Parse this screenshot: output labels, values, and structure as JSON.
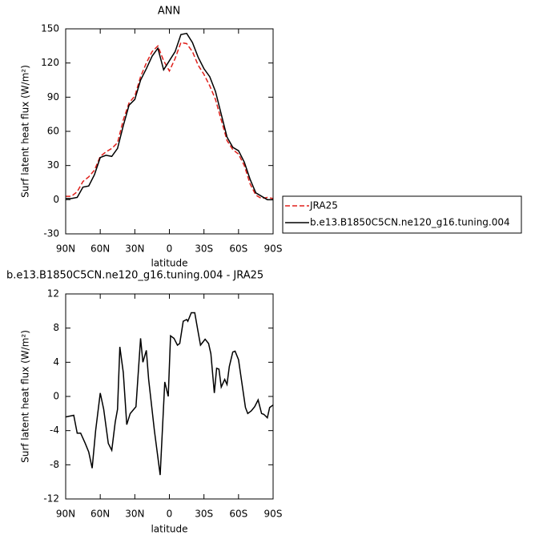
{
  "chart_data": [
    {
      "type": "line",
      "title": "ANN",
      "xlabel": "latitude",
      "ylabel": "Surf latent heat flux (W/m²)",
      "x": [
        90,
        85,
        80,
        75,
        70,
        65,
        60,
        55,
        50,
        45,
        40,
        35,
        30,
        25,
        20,
        15,
        10,
        5,
        0,
        -5,
        -10,
        -15,
        -20,
        -25,
        -30,
        -35,
        -40,
        -45,
        -50,
        -55,
        -60,
        -65,
        -70,
        -75,
        -80,
        -85,
        -90
      ],
      "series": [
        {
          "name": "JRA25",
          "color": "#e0201b",
          "style": "dashed",
          "values": [
            3,
            3,
            7,
            16,
            20,
            26,
            38,
            42,
            45,
            50,
            70,
            85,
            91,
            108,
            120,
            130,
            135,
            122,
            113,
            124,
            138,
            137,
            130,
            118,
            110,
            100,
            88,
            70,
            52,
            44,
            40,
            30,
            14,
            4,
            1,
            2,
            1
          ]
        },
        {
          "name": "b.e13.B1850C5CN.ne120_g16.tuning.004",
          "color": "#000000",
          "style": "solid",
          "values": [
            1,
            1,
            2,
            11,
            12,
            22,
            37,
            39,
            38,
            45,
            65,
            83,
            88,
            105,
            115,
            126,
            133,
            114,
            122,
            130,
            145,
            146,
            138,
            125,
            115,
            108,
            95,
            75,
            55,
            46,
            43,
            33,
            18,
            6,
            3,
            0,
            0
          ]
        }
      ],
      "xlim": [
        90,
        -90
      ],
      "xticks": [
        {
          "value": 90,
          "label": "90N"
        },
        {
          "value": 60,
          "label": "60N"
        },
        {
          "value": 30,
          "label": "30N"
        },
        0,
        {
          "value": -30,
          "label": "30S"
        },
        {
          "value": -60,
          "label": "60S"
        },
        {
          "value": -90,
          "label": "90S"
        }
      ],
      "ylim": [
        -30,
        150
      ],
      "yticks": [
        -30,
        0,
        30,
        60,
        90,
        120,
        150
      ],
      "legend": "right"
    },
    {
      "type": "line",
      "title": "b.e13.B1850C5CN.ne120_g16.tuning.004 - JRA25",
      "xlabel": "latitude",
      "ylabel": "Surf latent heat flux (W/m²)",
      "x": [
        90,
        83,
        80,
        77,
        73,
        70,
        67,
        64,
        60,
        57,
        53,
        50,
        47,
        45,
        43,
        40,
        37,
        34,
        29,
        25,
        23,
        20,
        18,
        13,
        8,
        4,
        1,
        -1,
        -4,
        -7,
        -9,
        -12,
        -15,
        -16,
        -19,
        -22,
        -25,
        -27,
        -31,
        -34,
        -36,
        -39,
        -41,
        -43,
        -45,
        -48,
        -50,
        -52,
        -55,
        -57,
        -60,
        -63,
        -66,
        -68,
        -71,
        -74,
        -77,
        -80,
        -82,
        -85,
        -87,
        -90
      ],
      "series": [
        {
          "name": null,
          "color": "#000000",
          "style": "solid",
          "values": [
            -2.4,
            -2.2,
            -4.3,
            -4.3,
            -5.5,
            -6.5,
            -8.4,
            -4,
            0.4,
            -1.5,
            -5.5,
            -6.3,
            -3,
            -1.5,
            5.8,
            2.8,
            -3.3,
            -2,
            -1.2,
            6.8,
            4,
            5.4,
            2,
            -4,
            -9.2,
            1.7,
            0,
            7.1,
            6.8,
            6,
            6.2,
            8.8,
            9,
            8.8,
            9.8,
            9.8,
            7.5,
            6,
            6.7,
            6.2,
            5,
            0.4,
            3.3,
            3.2,
            1.1,
            2,
            1.4,
            3.5,
            5.2,
            5.3,
            4.3,
            1.5,
            -1.3,
            -2,
            -1.7,
            -1.2,
            -0.4,
            -2,
            -2.1,
            -2.5,
            -1.3,
            -1
          ]
        }
      ],
      "xlim": [
        90,
        -90
      ],
      "xticks": [
        {
          "value": 90,
          "label": "90N"
        },
        {
          "value": 60,
          "label": "60N"
        },
        {
          "value": 30,
          "label": "30N"
        },
        0,
        {
          "value": -30,
          "label": "30S"
        },
        {
          "value": -60,
          "label": "60S"
        },
        {
          "value": -90,
          "label": "90S"
        }
      ],
      "ylim": [
        -12,
        12
      ],
      "yticks": [
        -12,
        -8,
        -4,
        0,
        4,
        8,
        12
      ]
    }
  ]
}
